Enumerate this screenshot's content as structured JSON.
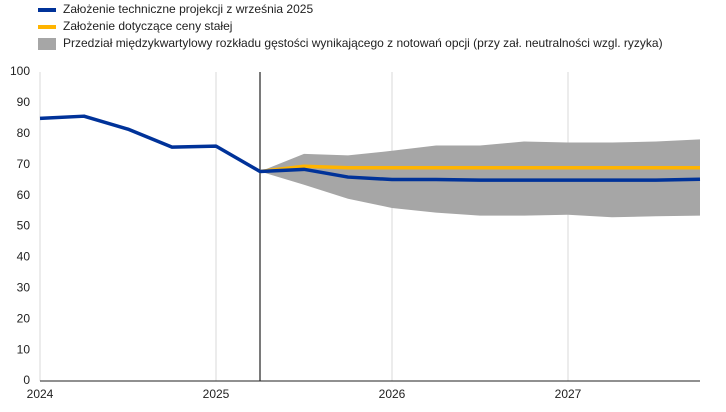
{
  "chart_data": {
    "type": "line",
    "x": [
      2024,
      2024.25,
      2024.5,
      2024.75,
      2025,
      2025.25,
      2025.5,
      2025.75,
      2026,
      2026.25,
      2026.5,
      2026.75,
      2027,
      2027.25,
      2027.5,
      2027.75
    ],
    "series": [
      {
        "name": "Założenie techniczne projekcji z września 2025",
        "color": "#003299",
        "values": [
          85,
          85.7,
          81.5,
          75.7,
          76,
          67.8,
          68.5,
          66,
          65.2,
          65.2,
          65,
          65,
          65,
          65,
          65,
          65.3
        ]
      },
      {
        "name": "Założenie dotyczące ceny stałej",
        "color": "#ffb400",
        "values": [
          null,
          null,
          null,
          null,
          null,
          67.8,
          69.5,
          69,
          69,
          69,
          69,
          69,
          69,
          69,
          69,
          69
        ]
      }
    ],
    "band": {
      "name": "Przedział międzykwartylowy rozkładu gęstości wynikającego z notowań opcji (przy zał. neutralności wzgl. ryzyka)",
      "color": "#a6a6a6",
      "lower": [
        null,
        null,
        null,
        null,
        null,
        67.8,
        63.5,
        59,
        56,
        54.5,
        53.5,
        53.5,
        53.8,
        53,
        53.3,
        53.5
      ],
      "upper": [
        null,
        null,
        null,
        null,
        null,
        67.8,
        73.5,
        73,
        74.5,
        76.2,
        76.2,
        77.5,
        77.2,
        77.2,
        77.5,
        78.2
      ]
    },
    "vline_x": 2025.25,
    "xlim": [
      2024,
      2027.75
    ],
    "xticks": [
      2024,
      2025,
      2026,
      2027
    ],
    "ylim": [
      0,
      100
    ],
    "yticks": [
      0,
      10,
      20,
      30,
      40,
      50,
      60,
      70,
      80,
      90,
      100
    ],
    "grid": true
  }
}
